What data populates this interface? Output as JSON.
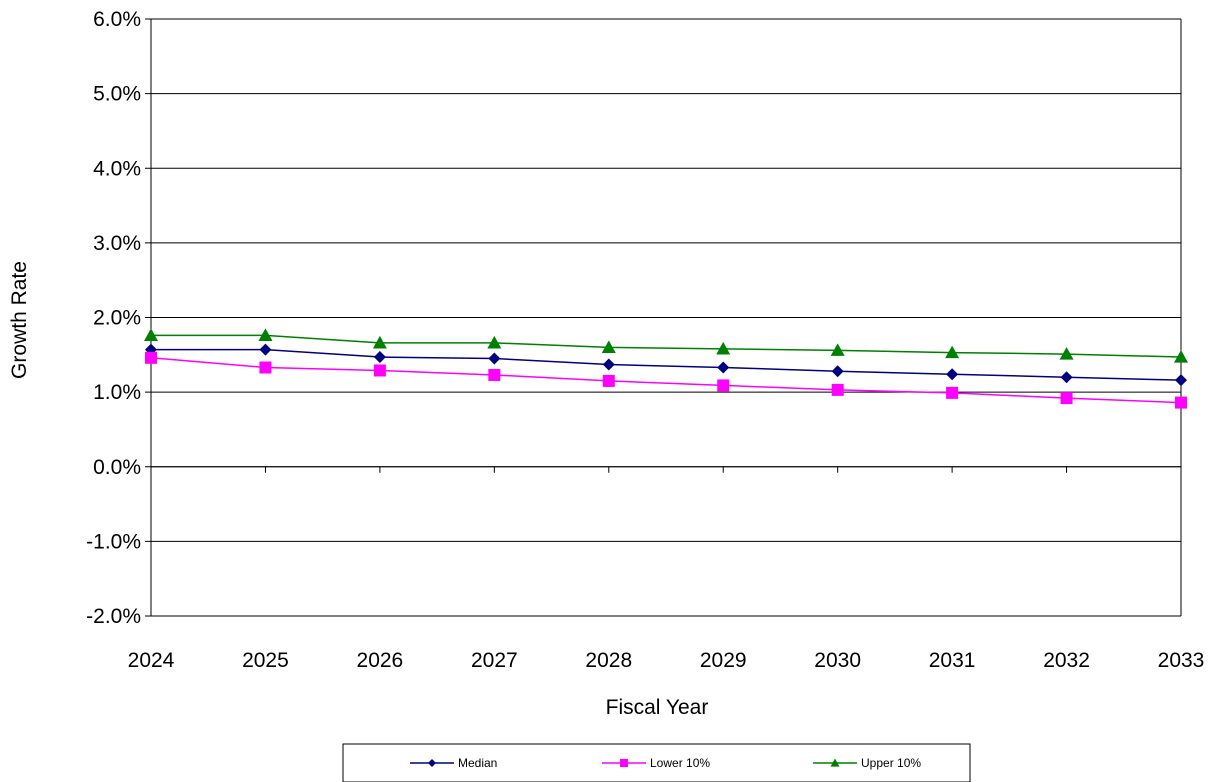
{
  "chart_data": {
    "type": "line",
    "title": "",
    "xlabel": "Fiscal Year",
    "ylabel": "Growth Rate",
    "categories": [
      "2024",
      "2025",
      "2026",
      "2027",
      "2028",
      "2029",
      "2030",
      "2031",
      "2032",
      "2033"
    ],
    "ylim": [
      -2.0,
      6.0
    ],
    "yticks": [
      "-2.0%",
      "-1.0%",
      "0.0%",
      "1.0%",
      "2.0%",
      "3.0%",
      "4.0%",
      "5.0%",
      "6.0%"
    ],
    "grid": "horizontal",
    "legend_position": "bottom",
    "series": [
      {
        "name": "Median",
        "color": "#000080",
        "marker": "diamond",
        "values": [
          1.57,
          1.57,
          1.47,
          1.45,
          1.37,
          1.33,
          1.28,
          1.24,
          1.2,
          1.16
        ]
      },
      {
        "name": "Lower 10%",
        "color": "#FF00FF",
        "marker": "square",
        "values": [
          1.46,
          1.33,
          1.29,
          1.23,
          1.15,
          1.09,
          1.03,
          0.99,
          0.92,
          0.86
        ]
      },
      {
        "name": "Upper 10%",
        "color": "#008000",
        "marker": "triangle",
        "values": [
          1.76,
          1.76,
          1.66,
          1.66,
          1.6,
          1.58,
          1.56,
          1.53,
          1.51,
          1.47
        ]
      }
    ]
  }
}
